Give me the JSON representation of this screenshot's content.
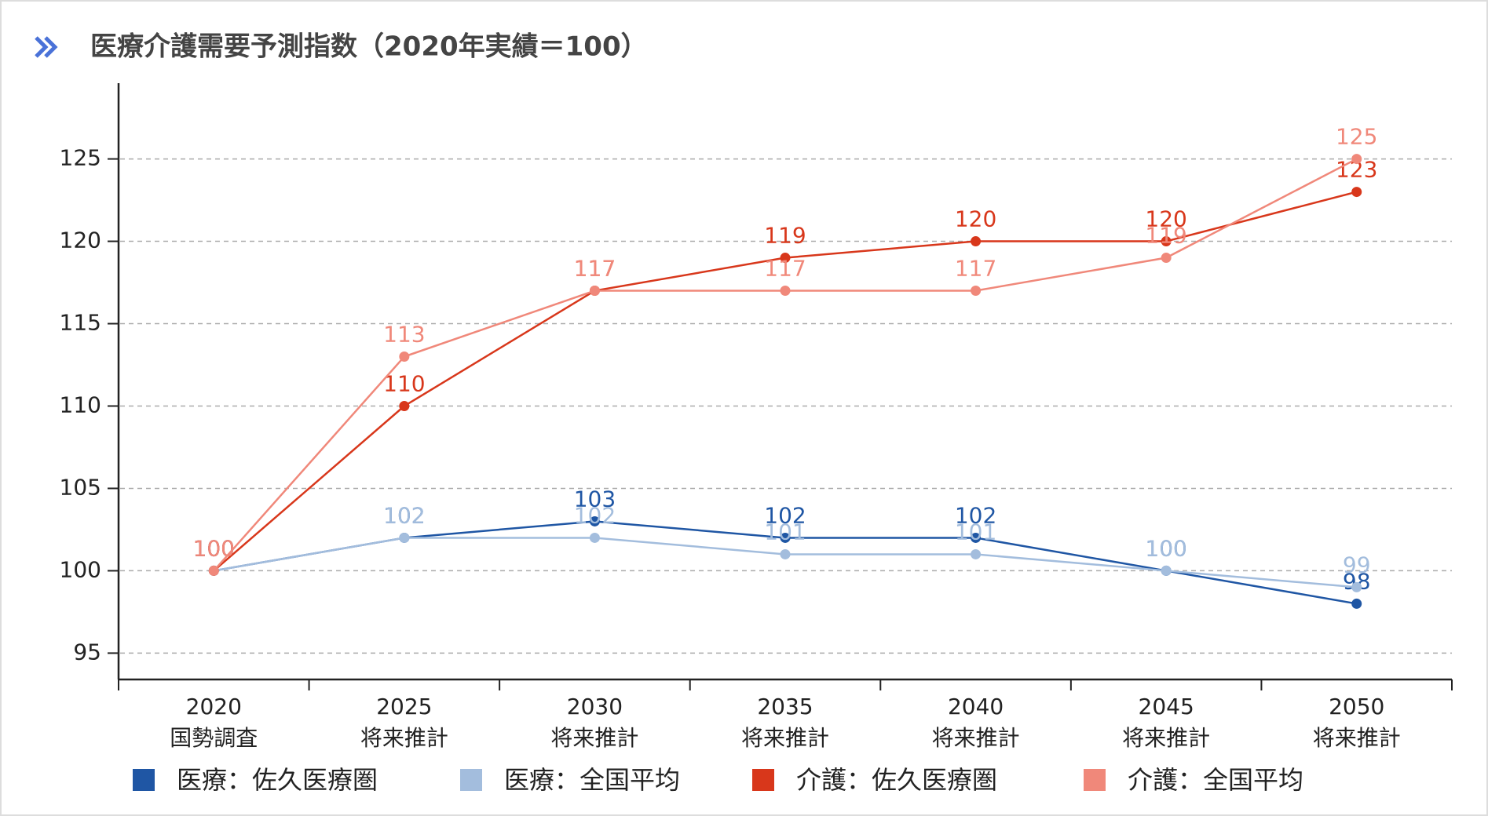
{
  "chart_data": {
    "type": "line",
    "title": "医療介護需要予測指数（2020年実績＝100）",
    "categories": [
      [
        "2020",
        "国勢調査"
      ],
      [
        "2025",
        "将来推計"
      ],
      [
        "2030",
        "将来推計"
      ],
      [
        "2035",
        "将来推計"
      ],
      [
        "2040",
        "将来推計"
      ],
      [
        "2045",
        "将来推計"
      ],
      [
        "2050",
        "将来推計"
      ]
    ],
    "series": [
      {
        "name": "医療：佐久医療圏",
        "color": "#1f56a4",
        "values": [
          100,
          102,
          103,
          102,
          102,
          100,
          98
        ]
      },
      {
        "name": "医療：全国平均",
        "color": "#a3bddd",
        "values": [
          100,
          102,
          102,
          101,
          101,
          100,
          99
        ]
      },
      {
        "name": "介護：佐久医療圏",
        "color": "#d8371b",
        "values": [
          100,
          110,
          117,
          119,
          120,
          120,
          123
        ]
      },
      {
        "name": "介護：全国平均",
        "color": "#f0887a",
        "values": [
          100,
          113,
          117,
          117,
          117,
          119,
          125
        ]
      }
    ],
    "ylim": [
      93.4,
      129.6
    ],
    "yticks": [
      95,
      100,
      105,
      110,
      115,
      120,
      125
    ],
    "grid": true
  }
}
